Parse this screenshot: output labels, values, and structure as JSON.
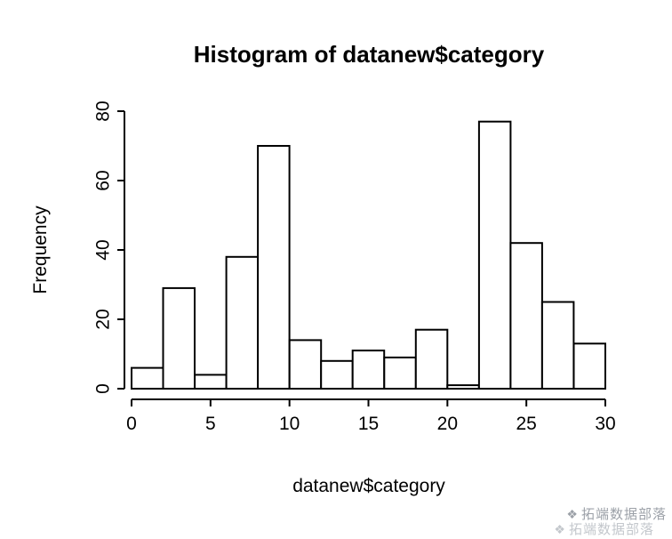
{
  "chart_data": {
    "type": "bar",
    "subtype": "histogram",
    "title": "Histogram of datanew$category",
    "xlabel": "datanew$category",
    "ylabel": "Frequency",
    "xlim": [
      0,
      30
    ],
    "ylim": [
      0,
      80
    ],
    "x_ticks": [
      0,
      5,
      10,
      15,
      20,
      25,
      30
    ],
    "y_ticks": [
      0,
      20,
      40,
      60,
      80
    ],
    "bin_start": 0,
    "bin_width": 2,
    "counts": [
      6,
      29,
      4,
      38,
      70,
      14,
      8,
      11,
      9,
      17,
      1,
      77,
      42,
      25,
      13
    ],
    "bar_fill": "#ffffff",
    "bar_stroke": "#000000",
    "axis_color": "#000000",
    "background": "#ffffff",
    "grid": false,
    "legend": "none"
  },
  "watermark": {
    "icon": "❖",
    "text": "拓端数据部落",
    "color": "#9ca1a8"
  }
}
